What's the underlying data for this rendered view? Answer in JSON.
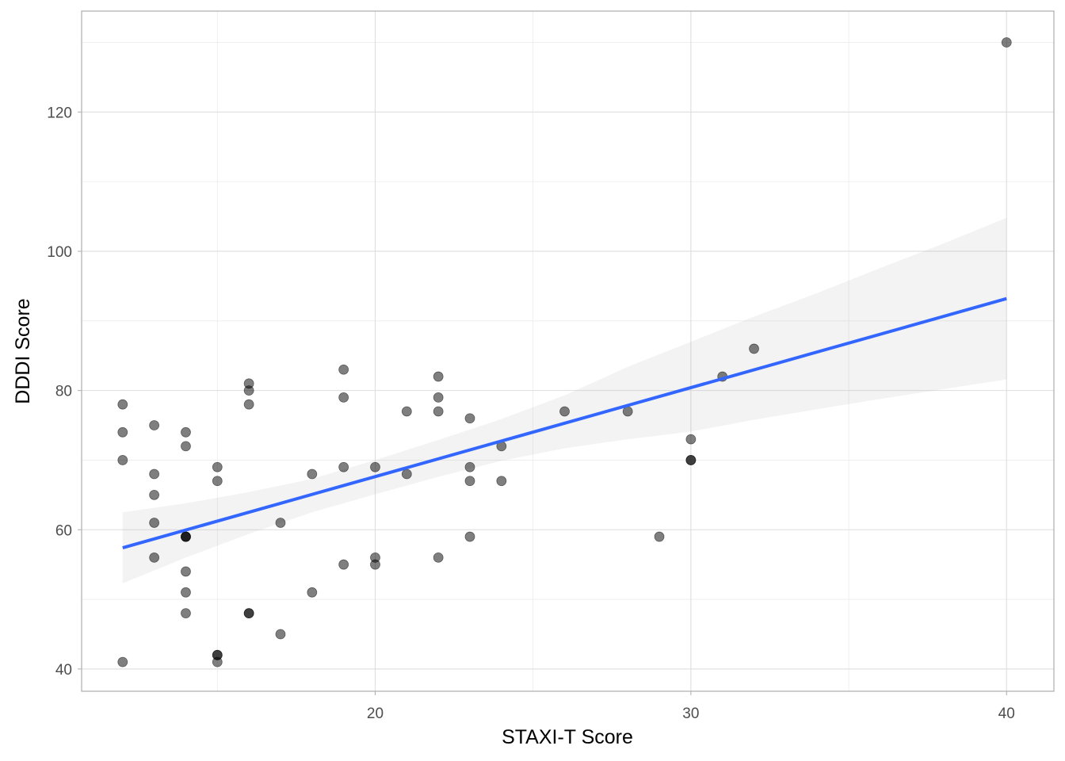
{
  "chart_data": {
    "type": "scatter",
    "title": "",
    "xlabel": "STAXI-T Score",
    "ylabel": "DDDI Score",
    "xlim": [
      10.7,
      41.5
    ],
    "ylim": [
      36.8,
      134.5
    ],
    "x_ticks": [
      20,
      30,
      40
    ],
    "x_tick_labels": [
      "20",
      "30",
      "40"
    ],
    "y_ticks": [
      40,
      60,
      80,
      100,
      120
    ],
    "y_tick_labels": [
      "40",
      "60",
      "80",
      "100",
      "120"
    ],
    "grid": true,
    "legend": "none",
    "point_color": "#000000",
    "point_opacity": 0.5,
    "series": [
      {
        "type": "scatter",
        "x": [
          12,
          12,
          12,
          12,
          13,
          13,
          13,
          13,
          13,
          14,
          14,
          14,
          14,
          14,
          14,
          14,
          14,
          15,
          15,
          15,
          15,
          15,
          16,
          16,
          16,
          16,
          16,
          17,
          17,
          18,
          18,
          19,
          19,
          19,
          19,
          20,
          20,
          20,
          21,
          21,
          22,
          22,
          22,
          22,
          23,
          23,
          23,
          23,
          24,
          24,
          26,
          28,
          29,
          30,
          30,
          30,
          31,
          32,
          40
        ],
        "y": [
          78,
          74,
          70,
          41,
          75,
          68,
          65,
          61,
          56,
          74,
          72,
          59,
          59,
          54,
          51,
          48,
          59,
          69,
          67,
          42,
          41,
          42,
          81,
          80,
          78,
          48,
          48,
          61,
          45,
          68,
          51,
          83,
          79,
          69,
          55,
          69,
          56,
          55,
          77,
          68,
          82,
          79,
          77,
          56,
          76,
          69,
          67,
          59,
          72,
          67,
          77,
          77,
          59,
          73,
          70,
          70,
          82,
          86,
          130
        ]
      }
    ],
    "trend_line": {
      "type": "linear_fit",
      "x": [
        12,
        40
      ],
      "y": [
        57.4,
        93.2
      ],
      "color": "#3366ff",
      "ci_band": {
        "x": [
          12,
          14,
          16,
          18,
          20,
          22,
          24,
          26,
          28,
          30,
          32,
          34,
          36,
          38,
          40
        ],
        "lower": [
          52.3,
          56.0,
          59.4,
          62.5,
          65.1,
          67.6,
          69.9,
          71.7,
          73.0,
          74.1,
          75.8,
          77.3,
          78.8,
          80.2,
          81.6
        ],
        "upper": [
          62.5,
          63.8,
          65.4,
          67.3,
          70.0,
          72.9,
          75.9,
          79.3,
          83.4,
          87.0,
          90.6,
          94.0,
          97.6,
          101.1,
          104.8
        ]
      }
    }
  }
}
